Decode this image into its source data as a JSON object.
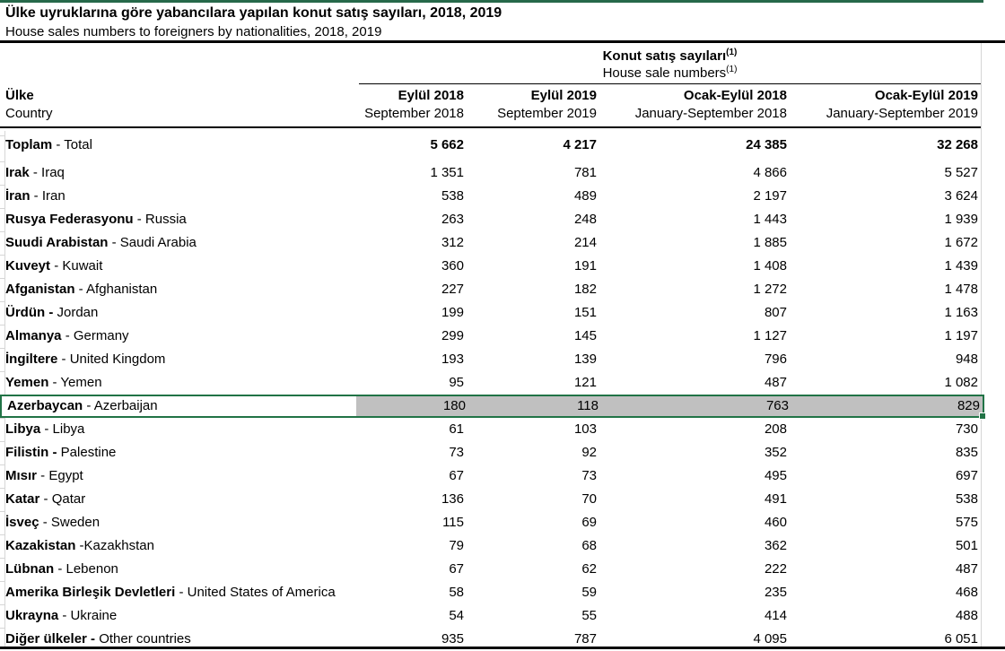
{
  "title": {
    "tr": "Ülke uyruklarına göre yabancılara yapılan konut satış sayıları, 2018, 2019",
    "en": "House sales numbers to foreigners by nationalities, 2018, 2019"
  },
  "table": {
    "group_header": {
      "tr": "Konut satış sayıları",
      "en": "House sale numbers",
      "footnote_marker": "(1)"
    },
    "row_header": {
      "tr": "Ülke",
      "en": "Country"
    },
    "columns": [
      {
        "tr": "Eylül 2018",
        "en": "September 2018"
      },
      {
        "tr": "Eylül 2019",
        "en": "September 2019"
      },
      {
        "tr": "Ocak-Eylül 2018",
        "en": "January-September 2018"
      },
      {
        "tr": "Ocak-Eylül 2019",
        "en": "January-September 2019"
      }
    ],
    "rows": [
      {
        "tr": "Toplam",
        "rest": " - Total",
        "values": [
          "5 662",
          "4 217",
          "24 385",
          "32 268"
        ],
        "total": true
      },
      {
        "tr": "Irak",
        "rest": " - Iraq",
        "values": [
          "1 351",
          "781",
          "4 866",
          "5 527"
        ]
      },
      {
        "tr": "İran",
        "rest": " - Iran",
        "values": [
          "538",
          "489",
          "2 197",
          "3 624"
        ]
      },
      {
        "tr": "Rusya Federasyonu",
        "rest": " - Russia",
        "values": [
          "263",
          "248",
          "1 443",
          "1 939"
        ]
      },
      {
        "tr": "Suudi Arabistan",
        "rest": " - Saudi Arabia",
        "values": [
          "312",
          "214",
          "1 885",
          "1 672"
        ]
      },
      {
        "tr": "Kuveyt",
        "rest": " - Kuwait",
        "values": [
          "360",
          "191",
          "1 408",
          "1 439"
        ]
      },
      {
        "tr": "Afganistan",
        "rest": " - Afghanistan",
        "values": [
          "227",
          "182",
          "1 272",
          "1 478"
        ]
      },
      {
        "tr": "Ürdün -",
        "rest": " Jordan",
        "values": [
          "199",
          "151",
          "807",
          "1 163"
        ]
      },
      {
        "tr": "Almanya",
        "rest": " - Germany",
        "values": [
          "299",
          "145",
          "1 127",
          "1 197"
        ]
      },
      {
        "tr": "İngiltere",
        "rest": " - United Kingdom",
        "values": [
          "193",
          "139",
          "796",
          "948"
        ]
      },
      {
        "tr": "Yemen",
        "rest": " - Yemen",
        "values": [
          "95",
          "121",
          "487",
          "1 082"
        ]
      },
      {
        "tr": "Azerbaycan",
        "rest": " - Azerbaijan",
        "values": [
          "180",
          "118",
          "763",
          "829"
        ],
        "highlight": true
      },
      {
        "tr": "Libya",
        "rest": " - Libya",
        "values": [
          "61",
          "103",
          "208",
          "730"
        ]
      },
      {
        "tr": "Filistin -",
        "rest": " Palestine",
        "values": [
          "73",
          "92",
          "352",
          "835"
        ]
      },
      {
        "tr": "Mısır",
        "rest": " - Egypt",
        "values": [
          "67",
          "73",
          "495",
          "697"
        ]
      },
      {
        "tr": "Katar",
        "rest": " - Qatar",
        "values": [
          "136",
          "70",
          "491",
          "538"
        ]
      },
      {
        "tr": "İsveç",
        "rest": " - Sweden",
        "values": [
          "115",
          "69",
          "460",
          "575"
        ]
      },
      {
        "tr": "Kazakistan",
        "rest": " -Kazakhstan",
        "values": [
          "79",
          "68",
          "362",
          "501"
        ]
      },
      {
        "tr": "Lübnan",
        "rest": " - Lebenon",
        "values": [
          "67",
          "62",
          "222",
          "487"
        ]
      },
      {
        "tr": "Amerika Birleşik Devletleri",
        "rest": " - United States of America",
        "values": [
          "58",
          "59",
          "235",
          "468"
        ]
      },
      {
        "tr": "Ukrayna",
        "rest": " - Ukraine",
        "values": [
          "54",
          "55",
          "414",
          "488"
        ]
      },
      {
        "tr": "Diğer ülkeler -",
        "rest": " Other countries",
        "values": [
          "935",
          "787",
          "4 095",
          "6 051"
        ]
      }
    ]
  },
  "colors": {
    "selection_green": "#217346",
    "highlight_gray": "#c0c0c0",
    "gridline_gray": "#d6d6d6"
  }
}
